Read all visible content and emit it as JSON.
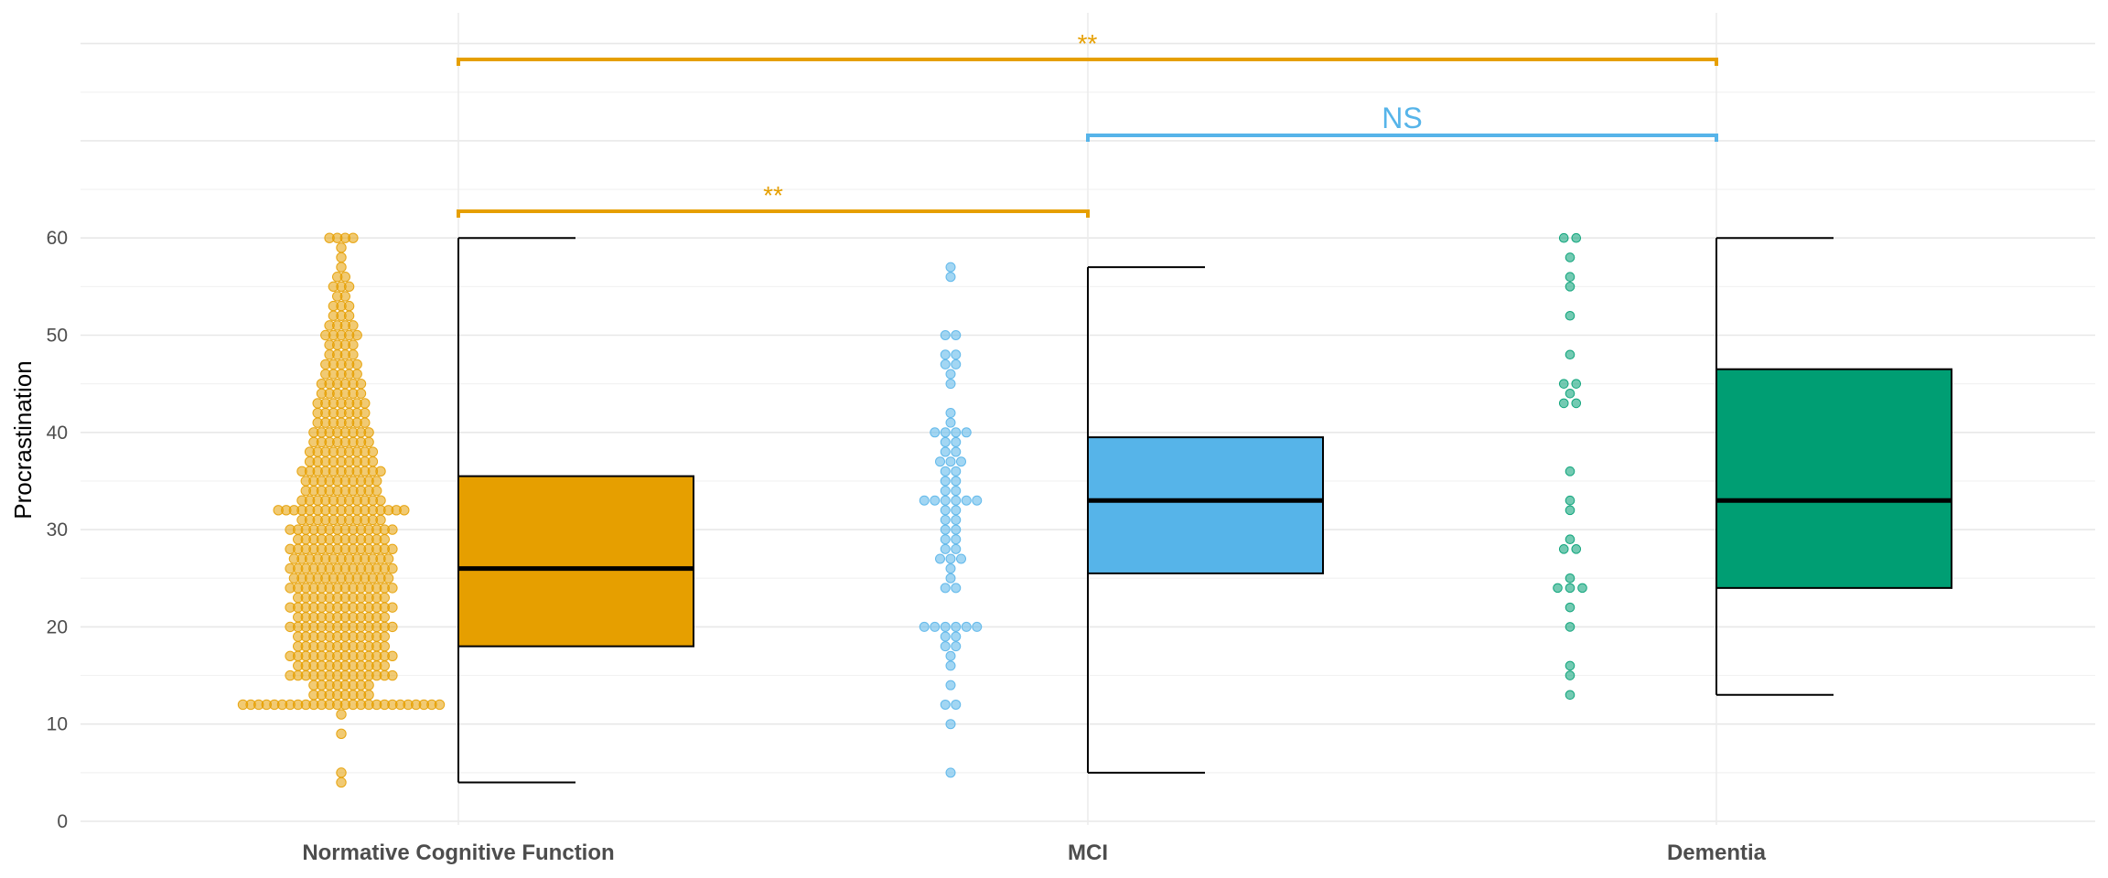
{
  "chart_data": {
    "type": "box",
    "ylabel": "Procrastination",
    "xlabel": "",
    "ylim": [
      0,
      60
    ],
    "yticks": [
      "0",
      "10",
      "20",
      "30",
      "40",
      "50",
      "60"
    ],
    "grid": true,
    "categories": [
      "Normative Cognitive Function",
      "MCI",
      "Dementia"
    ],
    "colors": [
      "#E69F00",
      "#56B4E9",
      "#009E73"
    ],
    "boxes": [
      {
        "whisker_low": 4,
        "q1": 18,
        "median": 26,
        "q3": 35.5,
        "whisker_high": 60
      },
      {
        "whisker_low": 5,
        "q1": 25.5,
        "median": 33,
        "q3": 39.5,
        "whisker_high": 57
      },
      {
        "whisker_low": 13,
        "q1": 24,
        "median": 33,
        "q3": 46.5,
        "whisker_high": 60
      }
    ],
    "points": [
      [
        4,
        5,
        9,
        11,
        12,
        12,
        12,
        12,
        12,
        12,
        12,
        12,
        12,
        12,
        12,
        12,
        12,
        12,
        12,
        12,
        12,
        12,
        12,
        12,
        12,
        12,
        12,
        12,
        12,
        12,
        13,
        13,
        13,
        13,
        13,
        13,
        13,
        13,
        14,
        14,
        14,
        14,
        14,
        14,
        14,
        14,
        15,
        15,
        15,
        15,
        15,
        15,
        15,
        15,
        15,
        15,
        15,
        15,
        15,
        15,
        16,
        16,
        16,
        16,
        16,
        16,
        16,
        16,
        16,
        16,
        16,
        16,
        17,
        17,
        17,
        17,
        17,
        17,
        17,
        17,
        17,
        17,
        17,
        17,
        17,
        17,
        18,
        18,
        18,
        18,
        18,
        18,
        18,
        18,
        18,
        18,
        18,
        18,
        19,
        19,
        19,
        19,
        19,
        19,
        19,
        19,
        19,
        19,
        19,
        19,
        20,
        20,
        20,
        20,
        20,
        20,
        20,
        20,
        20,
        20,
        20,
        20,
        20,
        20,
        21,
        21,
        21,
        21,
        21,
        21,
        21,
        21,
        21,
        21,
        21,
        21,
        22,
        22,
        22,
        22,
        22,
        22,
        22,
        22,
        22,
        22,
        22,
        22,
        22,
        22,
        23,
        23,
        23,
        23,
        23,
        23,
        23,
        23,
        23,
        23,
        23,
        23,
        24,
        24,
        24,
        24,
        24,
        24,
        24,
        24,
        24,
        24,
        24,
        24,
        24,
        24,
        25,
        25,
        25,
        25,
        25,
        25,
        25,
        25,
        25,
        25,
        25,
        25,
        25,
        26,
        26,
        26,
        26,
        26,
        26,
        26,
        26,
        26,
        26,
        26,
        26,
        26,
        26,
        27,
        27,
        27,
        27,
        27,
        27,
        27,
        27,
        27,
        27,
        27,
        27,
        27,
        28,
        28,
        28,
        28,
        28,
        28,
        28,
        28,
        28,
        28,
        28,
        28,
        28,
        28,
        29,
        29,
        29,
        29,
        29,
        29,
        29,
        29,
        29,
        29,
        29,
        29,
        30,
        30,
        30,
        30,
        30,
        30,
        30,
        30,
        30,
        30,
        30,
        30,
        30,
        30,
        31,
        31,
        31,
        31,
        31,
        31,
        31,
        31,
        31,
        31,
        31,
        32,
        32,
        32,
        32,
        32,
        32,
        32,
        32,
        32,
        32,
        32,
        32,
        32,
        32,
        32,
        32,
        32,
        33,
        33,
        33,
        33,
        33,
        33,
        33,
        33,
        33,
        33,
        33,
        34,
        34,
        34,
        34,
        34,
        34,
        34,
        34,
        34,
        34,
        35,
        35,
        35,
        35,
        35,
        35,
        35,
        35,
        35,
        35,
        36,
        36,
        36,
        36,
        36,
        36,
        36,
        36,
        36,
        36,
        36,
        37,
        37,
        37,
        37,
        37,
        37,
        37,
        37,
        37,
        38,
        38,
        38,
        38,
        38,
        38,
        38,
        38,
        38,
        39,
        39,
        39,
        39,
        39,
        39,
        39,
        39,
        40,
        40,
        40,
        40,
        40,
        40,
        40,
        40,
        41,
        41,
        41,
        41,
        41,
        41,
        41,
        42,
        42,
        42,
        42,
        42,
        42,
        42,
        43,
        43,
        43,
        43,
        43,
        43,
        43,
        44,
        44,
        44,
        44,
        44,
        44,
        45,
        45,
        45,
        45,
        45,
        45,
        46,
        46,
        46,
        46,
        46,
        47,
        47,
        47,
        47,
        47,
        48,
        48,
        48,
        48,
        49,
        49,
        49,
        49,
        50,
        50,
        50,
        50,
        50,
        51,
        51,
        51,
        51,
        52,
        52,
        52,
        53,
        53,
        53,
        54,
        54,
        55,
        55,
        55,
        56,
        56,
        57,
        58,
        59,
        60,
        60,
        60,
        60
      ],
      [
        5,
        10,
        12,
        12,
        14,
        16,
        17,
        18,
        18,
        19,
        19,
        20,
        20,
        20,
        20,
        20,
        20,
        24,
        24,
        25,
        26,
        27,
        27,
        27,
        28,
        28,
        29,
        29,
        30,
        30,
        31,
        31,
        32,
        32,
        33,
        33,
        33,
        33,
        33,
        33,
        34,
        34,
        35,
        35,
        36,
        36,
        37,
        37,
        37,
        38,
        38,
        39,
        39,
        40,
        40,
        40,
        40,
        41,
        42,
        45,
        46,
        47,
        47,
        48,
        48,
        50,
        50,
        56,
        57
      ],
      [
        13,
        15,
        16,
        20,
        22,
        24,
        24,
        24,
        25,
        28,
        28,
        29,
        32,
        33,
        36,
        43,
        43,
        44,
        45,
        45,
        48,
        52,
        55,
        56,
        58,
        60,
        60
      ]
    ],
    "comparisons": [
      {
        "from": 0,
        "to": 2,
        "label": "**",
        "color": "#E69F00",
        "level": 3
      },
      {
        "from": 1,
        "to": 2,
        "label": "NS",
        "color": "#56B4E9",
        "level": 2
      },
      {
        "from": 0,
        "to": 1,
        "label": "**",
        "color": "#E69F00",
        "level": 1
      }
    ]
  }
}
